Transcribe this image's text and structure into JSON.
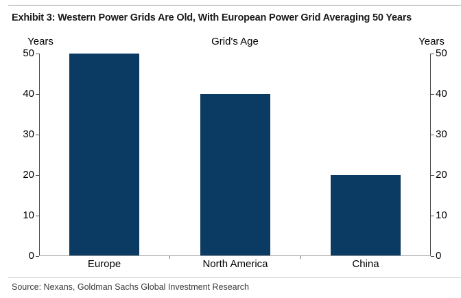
{
  "title": "Exhibit 3: Western Power Grids Are Old, With European Power Grid Averaging 50 Years",
  "source_note": "Source: Nexans, Goldman Sachs Global Investment Research",
  "chart_data": {
    "type": "bar",
    "title": "Grid's Age",
    "y_axis_title_left": "Years",
    "y_axis_title_right": "Years",
    "categories": [
      "Europe",
      "North America",
      "China"
    ],
    "values": [
      50,
      40,
      20
    ],
    "ylim": [
      0,
      50
    ],
    "yticks": [
      0,
      10,
      20,
      30,
      40,
      50
    ],
    "bar_color": "#0b3a63",
    "axis_color": "#4d4d4d",
    "grid": "off",
    "legend": "none",
    "dual_y_axis": true
  }
}
